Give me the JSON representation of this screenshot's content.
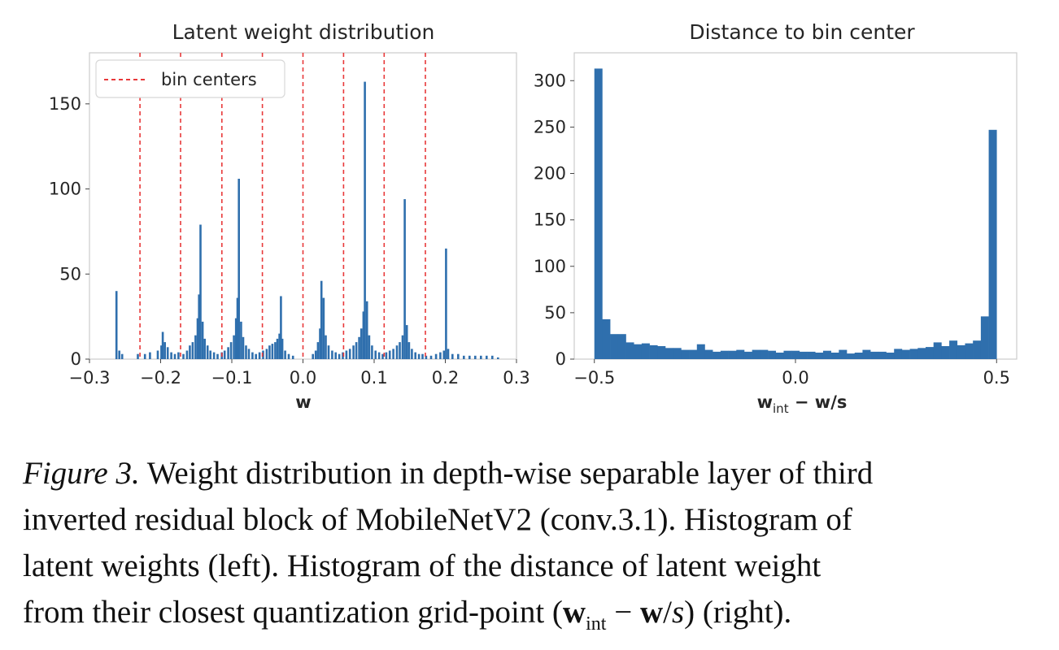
{
  "colors": {
    "bar": "#2f6fad",
    "bin_center": "#e8393a",
    "axes_edge": "#cccccc"
  },
  "chart_data": [
    {
      "type": "bar",
      "title": "Latent weight distribution",
      "xlabel": "w",
      "ylabel": "",
      "xlim": [
        -0.3,
        0.3
      ],
      "ylim": [
        0,
        180
      ],
      "xticks": [
        "−0.3",
        "−0.2",
        "−0.1",
        "0.0",
        "0.1",
        "0.2",
        "0.3"
      ],
      "xtick_values": [
        -0.3,
        -0.2,
        -0.1,
        0.0,
        0.1,
        0.2,
        0.3
      ],
      "yticks": [
        "0",
        "50",
        "100",
        "150"
      ],
      "ytick_values": [
        0,
        50,
        100,
        150
      ],
      "legend": {
        "label": "bin centers",
        "position": "top-left"
      },
      "bin_centers": [
        -0.229,
        -0.172,
        -0.114,
        -0.057,
        0.0,
        0.057,
        0.114,
        0.172
      ],
      "bars": [
        {
          "x": -0.262,
          "y": 40
        },
        {
          "x": -0.258,
          "y": 5
        },
        {
          "x": -0.254,
          "y": 3
        },
        {
          "x": -0.232,
          "y": 3
        },
        {
          "x": -0.222,
          "y": 3
        },
        {
          "x": -0.215,
          "y": 4
        },
        {
          "x": -0.204,
          "y": 5
        },
        {
          "x": -0.199,
          "y": 8
        },
        {
          "x": -0.197,
          "y": 16
        },
        {
          "x": -0.194,
          "y": 10
        },
        {
          "x": -0.19,
          "y": 7
        },
        {
          "x": -0.185,
          "y": 4
        },
        {
          "x": -0.18,
          "y": 3
        },
        {
          "x": -0.175,
          "y": 4
        },
        {
          "x": -0.168,
          "y": 3
        },
        {
          "x": -0.163,
          "y": 5
        },
        {
          "x": -0.159,
          "y": 8
        },
        {
          "x": -0.155,
          "y": 10
        },
        {
          "x": -0.151,
          "y": 14
        },
        {
          "x": -0.148,
          "y": 24
        },
        {
          "x": -0.146,
          "y": 38
        },
        {
          "x": -0.144,
          "y": 79
        },
        {
          "x": -0.141,
          "y": 22
        },
        {
          "x": -0.138,
          "y": 12
        },
        {
          "x": -0.134,
          "y": 8
        },
        {
          "x": -0.13,
          "y": 5
        },
        {
          "x": -0.125,
          "y": 4
        },
        {
          "x": -0.12,
          "y": 3
        },
        {
          "x": -0.114,
          "y": 4
        },
        {
          "x": -0.11,
          "y": 5
        },
        {
          "x": -0.105,
          "y": 7
        },
        {
          "x": -0.101,
          "y": 10
        },
        {
          "x": -0.097,
          "y": 14
        },
        {
          "x": -0.094,
          "y": 24
        },
        {
          "x": -0.092,
          "y": 36
        },
        {
          "x": -0.09,
          "y": 106
        },
        {
          "x": -0.087,
          "y": 22
        },
        {
          "x": -0.084,
          "y": 13
        },
        {
          "x": -0.08,
          "y": 8
        },
        {
          "x": -0.076,
          "y": 6
        },
        {
          "x": -0.071,
          "y": 4
        },
        {
          "x": -0.066,
          "y": 3
        },
        {
          "x": -0.061,
          "y": 4
        },
        {
          "x": -0.056,
          "y": 5
        },
        {
          "x": -0.051,
          "y": 6
        },
        {
          "x": -0.047,
          "y": 8
        },
        {
          "x": -0.043,
          "y": 9
        },
        {
          "x": -0.039,
          "y": 10
        },
        {
          "x": -0.036,
          "y": 12
        },
        {
          "x": -0.033,
          "y": 15
        },
        {
          "x": -0.031,
          "y": 37
        },
        {
          "x": -0.029,
          "y": 12
        },
        {
          "x": -0.025,
          "y": 5
        },
        {
          "x": -0.02,
          "y": 3
        },
        {
          "x": -0.014,
          "y": 2
        },
        {
          "x": 0.014,
          "y": 3
        },
        {
          "x": 0.018,
          "y": 5
        },
        {
          "x": 0.021,
          "y": 10
        },
        {
          "x": 0.024,
          "y": 18
        },
        {
          "x": 0.026,
          "y": 46
        },
        {
          "x": 0.029,
          "y": 36
        },
        {
          "x": 0.032,
          "y": 14
        },
        {
          "x": 0.036,
          "y": 8
        },
        {
          "x": 0.041,
          "y": 5
        },
        {
          "x": 0.046,
          "y": 4
        },
        {
          "x": 0.051,
          "y": 3
        },
        {
          "x": 0.056,
          "y": 4
        },
        {
          "x": 0.061,
          "y": 5
        },
        {
          "x": 0.066,
          "y": 6
        },
        {
          "x": 0.071,
          "y": 8
        },
        {
          "x": 0.075,
          "y": 10
        },
        {
          "x": 0.079,
          "y": 13
        },
        {
          "x": 0.082,
          "y": 18
        },
        {
          "x": 0.085,
          "y": 28
        },
        {
          "x": 0.087,
          "y": 163
        },
        {
          "x": 0.09,
          "y": 34
        },
        {
          "x": 0.093,
          "y": 14
        },
        {
          "x": 0.097,
          "y": 8
        },
        {
          "x": 0.102,
          "y": 5
        },
        {
          "x": 0.107,
          "y": 4
        },
        {
          "x": 0.112,
          "y": 3
        },
        {
          "x": 0.117,
          "y": 4
        },
        {
          "x": 0.122,
          "y": 5
        },
        {
          "x": 0.127,
          "y": 6
        },
        {
          "x": 0.132,
          "y": 8
        },
        {
          "x": 0.136,
          "y": 10
        },
        {
          "x": 0.14,
          "y": 14
        },
        {
          "x": 0.143,
          "y": 94
        },
        {
          "x": 0.146,
          "y": 20
        },
        {
          "x": 0.149,
          "y": 10
        },
        {
          "x": 0.153,
          "y": 6
        },
        {
          "x": 0.158,
          "y": 4
        },
        {
          "x": 0.163,
          "y": 3
        },
        {
          "x": 0.168,
          "y": 3
        },
        {
          "x": 0.173,
          "y": 2
        },
        {
          "x": 0.18,
          "y": 2
        },
        {
          "x": 0.187,
          "y": 3
        },
        {
          "x": 0.193,
          "y": 4
        },
        {
          "x": 0.198,
          "y": 5
        },
        {
          "x": 0.201,
          "y": 65
        },
        {
          "x": 0.204,
          "y": 6
        },
        {
          "x": 0.21,
          "y": 3
        },
        {
          "x": 0.218,
          "y": 3
        },
        {
          "x": 0.226,
          "y": 2
        },
        {
          "x": 0.234,
          "y": 2
        },
        {
          "x": 0.242,
          "y": 2
        },
        {
          "x": 0.25,
          "y": 2
        },
        {
          "x": 0.258,
          "y": 2
        },
        {
          "x": 0.266,
          "y": 2
        },
        {
          "x": 0.274,
          "y": 1
        }
      ]
    },
    {
      "type": "bar",
      "title": "Distance to bin center",
      "xlabel_main": "w",
      "xlabel_sub": "int",
      "xlabel_rest": " − w/s",
      "ylabel": "",
      "xlim": [
        -0.55,
        0.55
      ],
      "ylim": [
        0,
        330
      ],
      "xticks": [
        "−0.5",
        "0.0",
        "0.5"
      ],
      "xtick_values": [
        -0.5,
        0.0,
        0.5
      ],
      "yticks": [
        "0",
        "50",
        "100",
        "150",
        "200",
        "250",
        "300"
      ],
      "ytick_values": [
        0,
        50,
        100,
        150,
        200,
        250,
        300
      ],
      "bin_edges": [
        -0.5,
        0.5
      ],
      "values": [
        313,
        43,
        27,
        27,
        18,
        16,
        17,
        15,
        14,
        12,
        12,
        10,
        10,
        16,
        10,
        8,
        9,
        9,
        10,
        8,
        10,
        10,
        9,
        7,
        9,
        9,
        8,
        8,
        7,
        9,
        7,
        10,
        6,
        7,
        10,
        8,
        8,
        7,
        11,
        10,
        11,
        12,
        13,
        18,
        14,
        20,
        15,
        17,
        20,
        46,
        247
      ]
    }
  ],
  "caption": {
    "label": "Figure 3.",
    "lines": [
      " Weight distribution in depth-wise separable layer of third",
      "inverted residual block of MobileNetV2 (conv.3.1). Histogram of",
      "latent weights (left). Histogram of the distance of latent weight",
      "from their closest quantization grid-point ("
    ],
    "formula_main": "w",
    "formula_sub": "int",
    "formula_mid": " − ",
    "formula_w": "w",
    "formula_slash": "/",
    "formula_s": "s",
    "formula_end": ") (right)."
  }
}
